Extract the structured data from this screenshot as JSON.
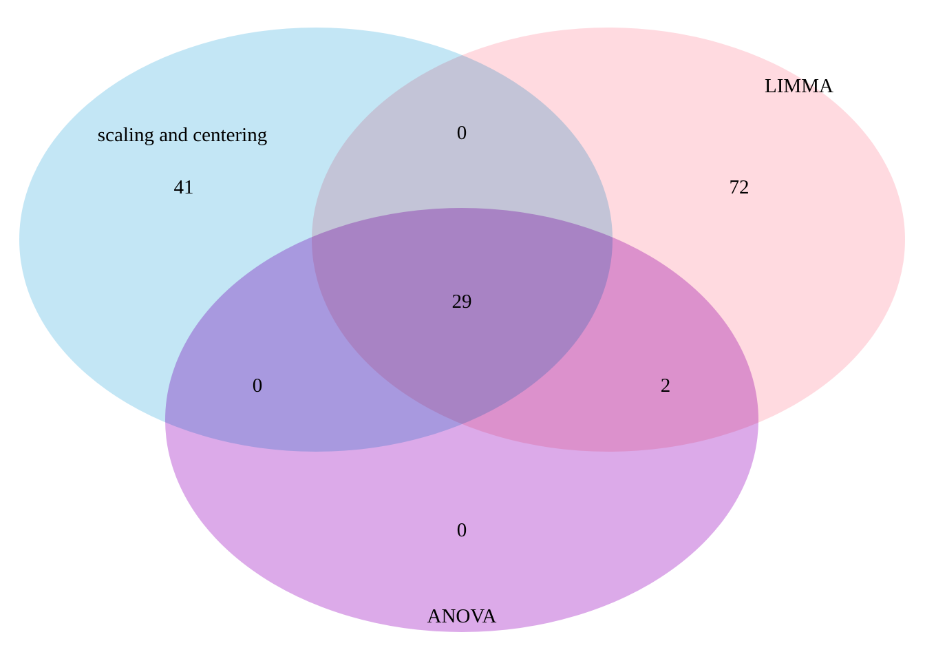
{
  "sets": [
    {
      "id": "scaling",
      "label": "scaling and centering",
      "color": "#87CEEB"
    },
    {
      "id": "limma",
      "label": "LIMMA",
      "color": "#FFB6C1"
    },
    {
      "id": "anova",
      "label": "ANOVA",
      "color": "#BA55D3"
    }
  ],
  "regions": {
    "scaling_only": "41",
    "limma_only": "72",
    "anova_only": "0",
    "scaling_limma": "0",
    "scaling_anova": "0",
    "limma_anova": "2",
    "all_three": "29"
  }
}
